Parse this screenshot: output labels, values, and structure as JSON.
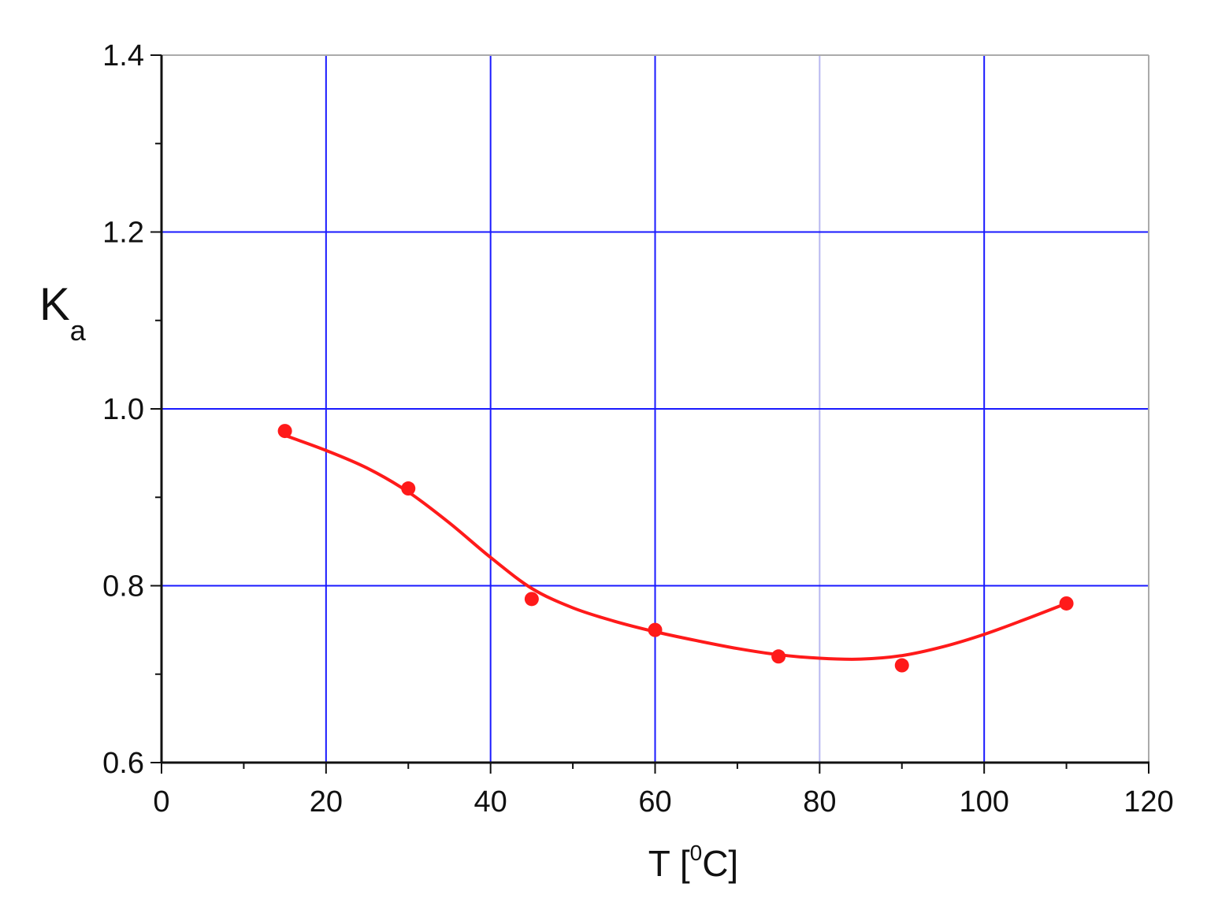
{
  "chart_data": {
    "type": "scatter",
    "title": "",
    "xlabel": {
      "main": "T [",
      "superscript": "0",
      "unit": "C]"
    },
    "ylabel": {
      "main": "K",
      "subscript": "a"
    },
    "xlim": [
      0,
      120
    ],
    "ylim": [
      0.6,
      1.4
    ],
    "x_ticks": [
      0,
      20,
      40,
      60,
      80,
      100,
      120
    ],
    "x_tick_labels": [
      "0",
      "20",
      "40",
      "60",
      "80",
      "100",
      "120"
    ],
    "y_ticks": [
      0.6,
      0.8,
      1.0,
      1.2,
      1.4
    ],
    "y_tick_labels": [
      "0.6",
      "0.8",
      "1.0",
      "1.2",
      "1.4"
    ],
    "grid": true,
    "grid_color": "#1a1aff",
    "series": [
      {
        "type": "scatter",
        "color": "#ff1a1a",
        "x": [
          15,
          30,
          45,
          60,
          75,
          90,
          110
        ],
        "y": [
          0.975,
          0.91,
          0.785,
          0.75,
          0.72,
          0.71,
          0.78
        ]
      },
      {
        "type": "line",
        "color": "#ff1a1a",
        "x": [
          15,
          20,
          25,
          30,
          35,
          40,
          45,
          50,
          55,
          60,
          65,
          70,
          75,
          80,
          85,
          90,
          95,
          100,
          105,
          110
        ],
        "y": [
          0.97,
          0.953,
          0.933,
          0.906,
          0.871,
          0.832,
          0.797,
          0.775,
          0.76,
          0.748,
          0.738,
          0.729,
          0.722,
          0.718,
          0.717,
          0.721,
          0.731,
          0.745,
          0.762,
          0.78
        ]
      }
    ]
  }
}
